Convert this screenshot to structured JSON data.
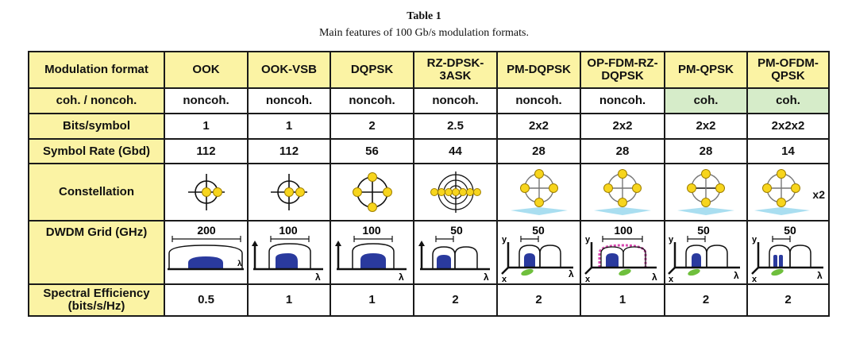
{
  "caption": {
    "title": "Table 1",
    "subtitle": "Main features of 100 Gb/s modulation formats."
  },
  "table": {
    "corner": "Modulation format",
    "formats": [
      "OOK",
      "OOK-VSB",
      "DQPSK",
      "RZ-DPSK-3ASK",
      "PM-DQPSK",
      "OP-FDM-RZ-DQPSK",
      "PM-QPSK",
      "PM-OFDM-QPSK"
    ],
    "rows": {
      "coherence": {
        "label": "coh. / noncoh.",
        "values": [
          "noncoh.",
          "noncoh.",
          "noncoh.",
          "noncoh.",
          "noncoh.",
          "noncoh.",
          "coh.",
          "coh."
        ]
      },
      "bits": {
        "label": "Bits/symbol",
        "values": [
          "1",
          "1",
          "2",
          "2.5",
          "2x2",
          "2x2",
          "2x2",
          "2x2x2"
        ]
      },
      "symbol_rate": {
        "label": "Symbol Rate (Gbd)",
        "values": [
          "112",
          "112",
          "56",
          "44",
          "28",
          "28",
          "28",
          "14"
        ]
      },
      "constellation": {
        "label": "Constellation",
        "extra_label": "x2"
      },
      "dwdm": {
        "label": "DWDM Grid (GHz)",
        "values": [
          "200",
          "100",
          "100",
          "50",
          "50",
          "100",
          "50",
          "50"
        ],
        "axis_lambda": "λ",
        "axis_x": "x",
        "axis_y": "y"
      },
      "efficiency": {
        "label": "Spectral Efficiency (bits/s/Hz)",
        "values": [
          "0.5",
          "1",
          "1",
          "2",
          "2",
          "1",
          "2",
          "2"
        ]
      }
    }
  },
  "colors": {
    "header_bg": "#fbf3a4",
    "coherent_bg": "#d6ecc9",
    "symbol_fill": "#f7d51d",
    "spectrum_fill": "#2a3a9e",
    "polarization_fill": "#6fbf3d",
    "plane_fill": "#6fc8e6",
    "grid_pink": "#d84ab0"
  }
}
